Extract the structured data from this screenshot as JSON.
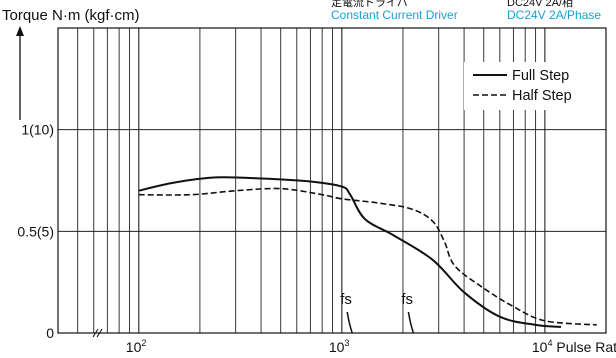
{
  "chart_data": {
    "type": "line",
    "ylabel": "Torque N·m (kgf·cm)",
    "xlabel": "Pulse Rate (PPS)",
    "x_scale": "log",
    "xlim": [
      40,
      20000
    ],
    "ylim": [
      0,
      1.5
    ],
    "grid": true,
    "x_ticks": [
      {
        "value": 100,
        "base": "10",
        "exp": "2",
        "suffix": ""
      },
      {
        "value": 1000,
        "base": "10",
        "exp": "3",
        "suffix": ""
      },
      {
        "value": 10000,
        "base": "10",
        "exp": "4",
        "suffix": " Pulse Rate (PPS)"
      }
    ],
    "y_ticks": [
      {
        "value": 0,
        "label": "0"
      },
      {
        "value": 0.5,
        "label": "0.5(5)"
      },
      {
        "value": 1,
        "label": "1(10)"
      }
    ],
    "driver_info": {
      "cut_label": "定電流ドライバ",
      "label": "Constant Current Driver",
      "cut_spec": "DC24V 2A/相",
      "spec": "DC24V 2A/Phase",
      "color": "#1aa0d8"
    },
    "series": [
      {
        "name": "Full Step",
        "style": "solid",
        "x": [
          100,
          150,
          240,
          400,
          700,
          1000,
          1100,
          1300,
          1800,
          2800,
          4000,
          6000,
          9000,
          12000
        ],
        "y": [
          0.7,
          0.74,
          0.765,
          0.76,
          0.745,
          0.72,
          0.68,
          0.56,
          0.48,
          0.36,
          0.2,
          0.08,
          0.04,
          0.03
        ]
      },
      {
        "name": "Half Step",
        "style": "dashed",
        "x": [
          100,
          180,
          300,
          500,
          800,
          1000,
          1500,
          2200,
          2800,
          3200,
          3600,
          5000,
          7000,
          10000,
          18000
        ],
        "y": [
          0.68,
          0.68,
          0.7,
          0.71,
          0.68,
          0.66,
          0.64,
          0.61,
          0.55,
          0.45,
          0.33,
          0.22,
          0.13,
          0.06,
          0.04
        ]
      }
    ],
    "annotations": [
      {
        "text": "fs",
        "x": 1100
      },
      {
        "text": "fs",
        "x": 2200
      }
    ]
  }
}
